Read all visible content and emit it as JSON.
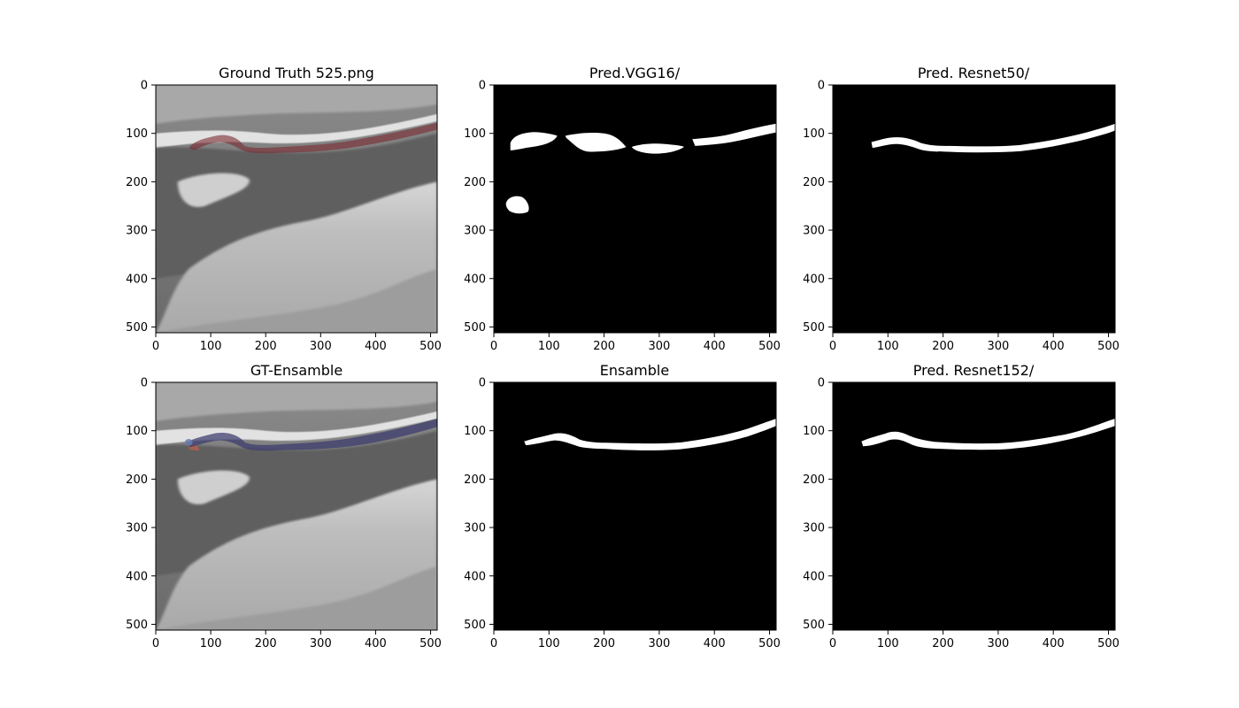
{
  "figure": {
    "background": "#ffffff",
    "tick_values": [
      0,
      100,
      200,
      300,
      400,
      500
    ],
    "tick_labels": [
      "0",
      "100",
      "200",
      "300",
      "400",
      "500"
    ],
    "image_extent": {
      "width": 512,
      "height": 512
    }
  },
  "panels": [
    {
      "id": "gt",
      "title": "Ground Truth 525.png",
      "kind": "ultrasound",
      "overlay": "red"
    },
    {
      "id": "vgg",
      "title": "Pred.VGG16/",
      "kind": "mask",
      "mask": "vgg"
    },
    {
      "id": "r50",
      "title": "Pred. Resnet50/",
      "kind": "mask",
      "mask": "r50"
    },
    {
      "id": "gtens",
      "title": "GT-Ensamble",
      "kind": "ultrasound",
      "overlay": "blue"
    },
    {
      "id": "ens",
      "title": "Ensamble",
      "kind": "mask",
      "mask": "ens"
    },
    {
      "id": "r152",
      "title": "Pred. Resnet152/",
      "kind": "mask",
      "mask": "r152"
    }
  ],
  "colors": {
    "mask_bg": "#000000",
    "mask_fg": "#ffffff",
    "overlay_red": "#7a2a30",
    "overlay_blue": "#3a3a6e",
    "overlay_blue_edge": "#6a7fb0",
    "overlay_red_edge": "#c0604a"
  }
}
